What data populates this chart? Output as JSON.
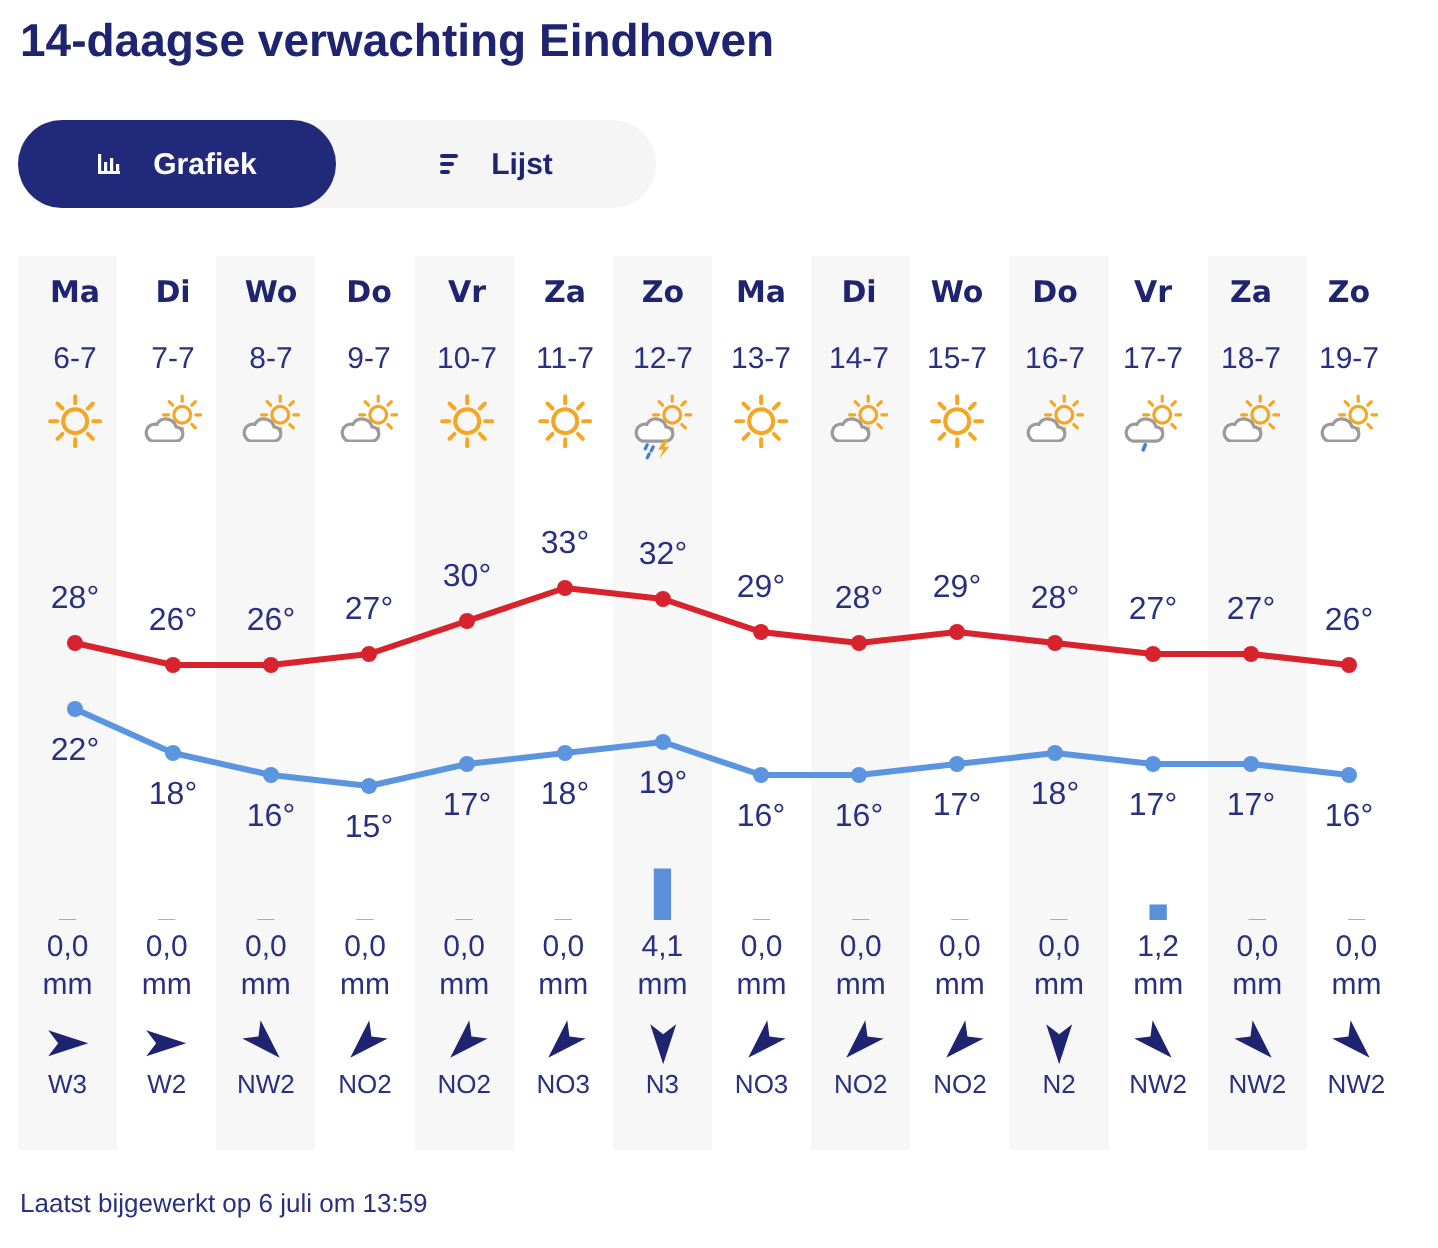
{
  "chart_data": [
    {
      "type": "line",
      "title": "14-daagse verwachting Eindhoven",
      "categories": [
        "Ma 6-7",
        "Di 7-7",
        "Wo 8-7",
        "Do 9-7",
        "Vr 10-7",
        "Za 11-7",
        "Zo 12-7",
        "Ma 13-7",
        "Di 14-7",
        "Wo 15-7",
        "Do 16-7",
        "Vr 17-7",
        "Za 18-7",
        "Zo 19-7"
      ],
      "series": [
        {
          "color": "#d7232e",
          "values": [
            28,
            26,
            26,
            27,
            30,
            33,
            32,
            29,
            28,
            29,
            28,
            27,
            27,
            26
          ],
          "value_labels": [
            "28°",
            "26°",
            "26°",
            "27°",
            "30°",
            "33°",
            "32°",
            "29°",
            "28°",
            "29°",
            "28°",
            "27°",
            "27°",
            "26°"
          ]
        },
        {
          "color": "#5b95e0",
          "values": [
            22,
            18,
            16,
            15,
            17,
            18,
            19,
            16,
            16,
            17,
            18,
            17,
            17,
            16
          ],
          "value_labels": [
            "22°",
            "18°",
            "16°",
            "15°",
            "17°",
            "18°",
            "19°",
            "16°",
            "16°",
            "17°",
            "18°",
            "17°",
            "17°",
            "16°"
          ]
        }
      ],
      "marker": "circle",
      "tick_labels": "x",
      "annotations": [
        "Grafiek",
        "Lijst"
      ]
    },
    {
      "type": "bar",
      "categories": [
        null,
        null,
        null,
        null,
        null,
        null,
        null,
        null,
        null,
        null,
        null,
        null,
        null,
        null
      ],
      "values": [
        0,
        0,
        0,
        0,
        0,
        0,
        4.1,
        0,
        0,
        0,
        0,
        1.2,
        0,
        0
      ],
      "color": "#5b8fd9",
      "value_labels": [
        "0,0 mm",
        "0,0 mm",
        "0,0 mm",
        "0,0 mm",
        "0,0 mm",
        "0,0 mm",
        "4,1 mm",
        "0,0 mm",
        "0,0 mm",
        "0,0 mm",
        "0,0 mm",
        "1,2 mm",
        "0,0 mm",
        "0,0 mm"
      ],
      "tick_labels": false,
      "annotations": [
        "W3",
        "W2",
        "NW2",
        "NO2",
        "NO2",
        "NO3",
        "N3",
        "NO3",
        "NO2",
        "NO2",
        "N2",
        "NW2",
        "NW2",
        "NW2",
        "Laatst bijgewerkt op 6 juli om 13:59"
      ]
    }
  ]
}
